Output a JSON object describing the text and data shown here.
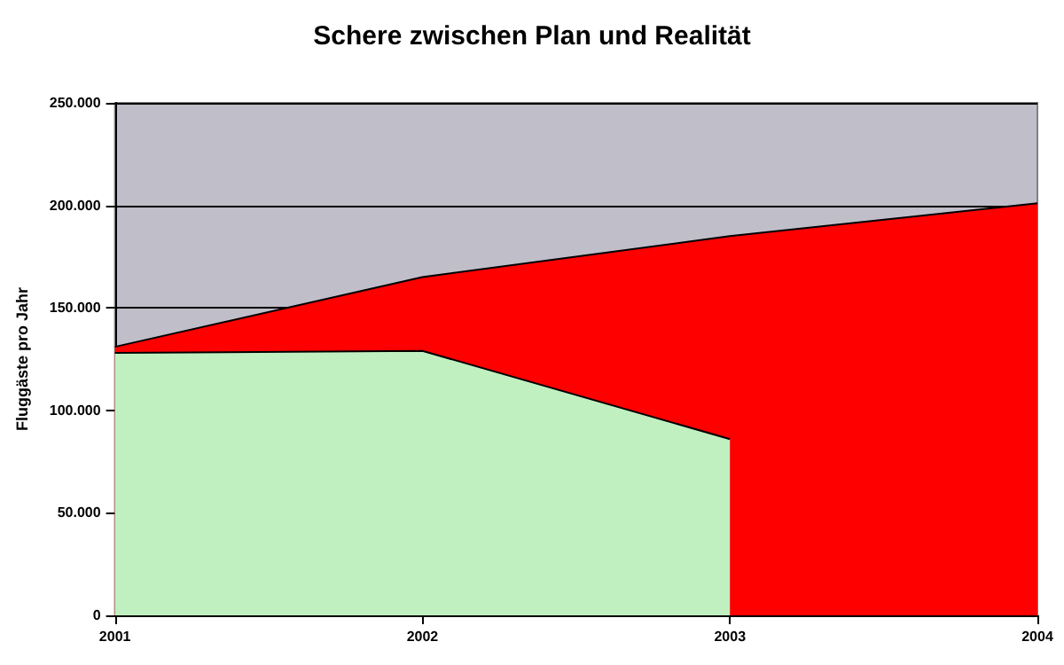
{
  "chart_data": {
    "type": "area",
    "title": "Schere zwischen Plan und Realität",
    "ylabel": "Fluggäste pro Jahr",
    "x": [
      2001,
      2002,
      2003,
      2004
    ],
    "series": [
      {
        "color": "#ff0000",
        "values": [
          131000,
          165000,
          185000,
          201000
        ]
      },
      {
        "color": "#c0f0c0",
        "values": [
          128000,
          129000,
          86000,
          null
        ]
      }
    ],
    "xlim": [
      2001,
      2004
    ],
    "xticks": [
      2001,
      2002,
      2003,
      2004
    ],
    "ylim": [
      0,
      250000
    ],
    "yticks": [
      {
        "value": 0,
        "label": "0"
      },
      {
        "value": 50000,
        "label": "50.000"
      },
      {
        "value": 100000,
        "label": "100.000"
      },
      {
        "value": 150000,
        "label": "150.000"
      },
      {
        "value": 200000,
        "label": "200.000"
      },
      {
        "value": 250000,
        "label": "250.000"
      }
    ],
    "grid": "y",
    "marker": "none",
    "line_style": "solid"
  }
}
